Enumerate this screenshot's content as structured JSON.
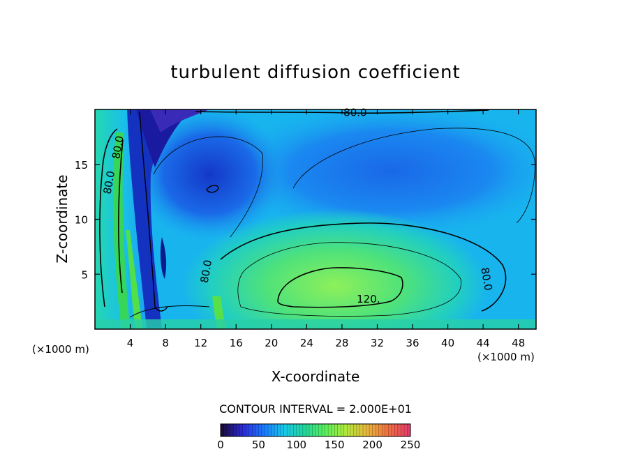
{
  "chart_data": {
    "type": "heatmap",
    "title": "turbulent diffusion coefficient",
    "xlabel": "X-coordinate",
    "ylabel": "Z-coordinate",
    "x_unit_left": "(×1000 m)",
    "x_unit_right": "(×1000 m)",
    "xlim": [
      0,
      50
    ],
    "ylim": [
      0,
      20
    ],
    "x_ticks": [
      "4",
      "8",
      "12",
      "16",
      "20",
      "24",
      "28",
      "32",
      "36",
      "40",
      "44",
      "48"
    ],
    "y_ticks": [
      "5",
      "10",
      "15"
    ],
    "contour_interval_text": "CONTOUR INTERVAL = 2.000E+01",
    "contour_labels": [
      {
        "text": "80.0",
        "x": 29.5,
        "z": 19.4
      },
      {
        "text": "80.0",
        "x": 3.0,
        "z": 16.5
      },
      {
        "text": "80.0",
        "x": 2.0,
        "z": 13.3
      },
      {
        "text": "80.0",
        "x": 13.0,
        "z": 5.2
      },
      {
        "text": "80.0",
        "x": 44.0,
        "z": 4.5
      },
      {
        "text": "120.",
        "x": 31.0,
        "z": 2.4
      }
    ],
    "colorbar": {
      "min": 0,
      "max": 250,
      "tick_labels": [
        "0",
        "50",
        "100",
        "150",
        "200",
        "250"
      ],
      "colors": [
        "#1a0a3c",
        "#2b2bd8",
        "#1a78ff",
        "#1ac8e8",
        "#22d89a",
        "#5cf05a",
        "#b4e83c",
        "#e8b43c",
        "#f07040",
        "#e03c6a"
      ]
    }
  }
}
